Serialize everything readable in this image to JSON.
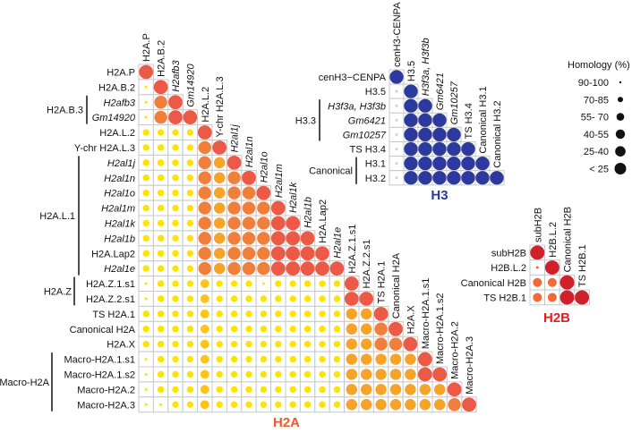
{
  "legend": {
    "title": "Homology (%)",
    "items": [
      {
        "label": "90-100",
        "level": 5
      },
      {
        "label": "70-85",
        "level": 4
      },
      {
        "label": "55- 70",
        "level": 3
      },
      {
        "label": "40-55",
        "level": 2
      },
      {
        "label": "25-40",
        "level": 1
      },
      {
        "label": "< 25",
        "level": 0
      }
    ]
  },
  "chart_data": [
    {
      "type": "heatmap",
      "title": "H2A",
      "title_color": "#f05a28",
      "level_colors": [
        "#fde300",
        "#fde300",
        "#fcc41a",
        "#f6a32a",
        "#f07f3c",
        "#ec5a47"
      ],
      "level_meaning": [
        "<25",
        "25-40",
        "40-55",
        "55-70",
        "70-85",
        "90-100"
      ],
      "labels": [
        {
          "text": "H2A.P"
        },
        {
          "text": "H2A.B.2"
        },
        {
          "text": "H2afb3",
          "italic": true
        },
        {
          "text": "Gm14920",
          "italic": true
        },
        {
          "text": "H2A.L.2"
        },
        {
          "text": "Y-chr H2A.L.3"
        },
        {
          "text": "H2al1j",
          "italic": true
        },
        {
          "text": "H2al1n",
          "italic": true
        },
        {
          "text": "H2al1o",
          "italic": true
        },
        {
          "text": "H2al1m",
          "italic": true
        },
        {
          "text": "H2al1k",
          "italic": true
        },
        {
          "text": "H2al1b",
          "italic": true
        },
        {
          "text": "H2A.Lap2"
        },
        {
          "text": "H2al1e",
          "italic": true
        },
        {
          "text": "H2A.Z.1.s1"
        },
        {
          "text": "H2A.Z.2.s1"
        },
        {
          "text": "TS H2A.1"
        },
        {
          "text": "Canonical H2A"
        },
        {
          "text": "H2A.X"
        },
        {
          "text": "Macro-H2A.1.s1"
        },
        {
          "text": "Macro-H2A.1.s2"
        },
        {
          "text": "Macro-H2A.2"
        },
        {
          "text": "Macro-H2A.3"
        }
      ],
      "groups": [
        {
          "name": "H2A.B.3",
          "rows": [
            2,
            3
          ]
        },
        {
          "name": "H2A.L.1",
          "rows": [
            6,
            13
          ]
        },
        {
          "name": "H2A.Z",
          "rows": [
            14,
            15
          ]
        },
        {
          "name": "Macro-H2A",
          "rows": [
            19,
            22
          ]
        }
      ],
      "matrix": [
        [
          5
        ],
        [
          0,
          5
        ],
        [
          0,
          4,
          5
        ],
        [
          0,
          4,
          5,
          5
        ],
        [
          1,
          1,
          1,
          1,
          5
        ],
        [
          1,
          1,
          1,
          1,
          4,
          5
        ],
        [
          1,
          1,
          1,
          1,
          4,
          3,
          5
        ],
        [
          1,
          1,
          1,
          1,
          4,
          3,
          4,
          5
        ],
        [
          1,
          1,
          1,
          1,
          4,
          3,
          4,
          4,
          5
        ],
        [
          1,
          1,
          1,
          1,
          4,
          3,
          4,
          4,
          4,
          5
        ],
        [
          1,
          1,
          1,
          1,
          4,
          3,
          4,
          4,
          4,
          5,
          5
        ],
        [
          1,
          1,
          1,
          1,
          4,
          3,
          4,
          4,
          4,
          5,
          5,
          5
        ],
        [
          1,
          1,
          1,
          1,
          4,
          3,
          4,
          4,
          4,
          5,
          5,
          5,
          5
        ],
        [
          1,
          1,
          1,
          1,
          4,
          3,
          4,
          4,
          4,
          5,
          5,
          5,
          5,
          5
        ],
        [
          0,
          1,
          1,
          1,
          2,
          1,
          1,
          1,
          0,
          1,
          1,
          1,
          1,
          1,
          5
        ],
        [
          0,
          1,
          1,
          1,
          2,
          1,
          1,
          1,
          1,
          1,
          1,
          1,
          1,
          1,
          5,
          5
        ],
        [
          1,
          1,
          1,
          1,
          2,
          1,
          1,
          1,
          1,
          1,
          1,
          1,
          1,
          1,
          3,
          3,
          5
        ],
        [
          1,
          1,
          1,
          1,
          2,
          1,
          1,
          1,
          1,
          1,
          1,
          1,
          1,
          1,
          3,
          3,
          4,
          5
        ],
        [
          1,
          1,
          1,
          1,
          2,
          1,
          1,
          1,
          1,
          1,
          1,
          1,
          1,
          1,
          3,
          3,
          4,
          4,
          5
        ],
        [
          0,
          1,
          1,
          1,
          2,
          1,
          1,
          1,
          1,
          1,
          1,
          1,
          1,
          1,
          3,
          3,
          3,
          3,
          3,
          5
        ],
        [
          0,
          1,
          1,
          1,
          2,
          1,
          1,
          1,
          1,
          1,
          1,
          1,
          1,
          1,
          3,
          3,
          3,
          3,
          3,
          5,
          5
        ],
        [
          0,
          1,
          1,
          1,
          2,
          1,
          1,
          1,
          1,
          1,
          1,
          1,
          1,
          1,
          3,
          3,
          3,
          3,
          3,
          3,
          3,
          5
        ],
        [
          0,
          0,
          1,
          1,
          2,
          1,
          1,
          1,
          1,
          1,
          1,
          1,
          1,
          1,
          3,
          3,
          3,
          3,
          3,
          3,
          3,
          4,
          5
        ]
      ]
    },
    {
      "type": "heatmap",
      "title": "H3",
      "title_color": "#2b3a9c",
      "level_colors": [
        "#a9dbe8",
        "#2b3a9c",
        "#2b3a9c",
        "#2b3a9c",
        "#2b3a9c",
        "#2b3a9c"
      ],
      "labels": [
        {
          "text": "cenH3−CENPA"
        },
        {
          "text": "H3.5"
        },
        {
          "text": "H3f3a, H3f3b",
          "italic": true
        },
        {
          "text": "Gm6421",
          "italic": true
        },
        {
          "text": "Gm10257",
          "italic": true
        },
        {
          "text": "TS H3.4"
        },
        {
          "text": "H3.1"
        },
        {
          "text": "H3.2"
        }
      ],
      "col_labels": [
        {
          "text": "cenH3-CENPA"
        },
        {
          "text": "H3.5"
        },
        {
          "text": "H3f3a, H3f3b",
          "italic": true
        },
        {
          "text": "Gm6421",
          "italic": true
        },
        {
          "text": "Gm10257",
          "italic": true
        },
        {
          "text": "TS H3.4"
        },
        {
          "text": "Canonical H3.1"
        },
        {
          "text": "Canonical H3.2"
        }
      ],
      "groups": [
        {
          "name": "H3.3",
          "rows": [
            2,
            4
          ]
        },
        {
          "name": "Canonical",
          "rows": [
            6,
            7
          ]
        }
      ],
      "matrix": [
        [
          5
        ],
        [
          0,
          5
        ],
        [
          0,
          5,
          5
        ],
        [
          0,
          5,
          5,
          5
        ],
        [
          0,
          5,
          5,
          5,
          5
        ],
        [
          0,
          5,
          5,
          5,
          5,
          5
        ],
        [
          0,
          5,
          5,
          5,
          5,
          5,
          5
        ],
        [
          0,
          5,
          5,
          5,
          5,
          5,
          5,
          5
        ]
      ]
    },
    {
      "type": "heatmap",
      "title": "H2B",
      "title_color": "#e02027",
      "level_colors": [
        "#f26a3a",
        "#f26a3a",
        "#f26a3a",
        "#d0202a",
        "#d0202a",
        "#d0202a"
      ],
      "labels": [
        {
          "text": "subH2B"
        },
        {
          "text": "H2B.L.2"
        },
        {
          "text": "Canonical H2B"
        },
        {
          "text": "TS H2B.1"
        }
      ],
      "groups": [],
      "matrix": [
        [
          5
        ],
        [
          0,
          5
        ],
        [
          2,
          2,
          5
        ],
        [
          2,
          2,
          5,
          5
        ]
      ]
    }
  ]
}
